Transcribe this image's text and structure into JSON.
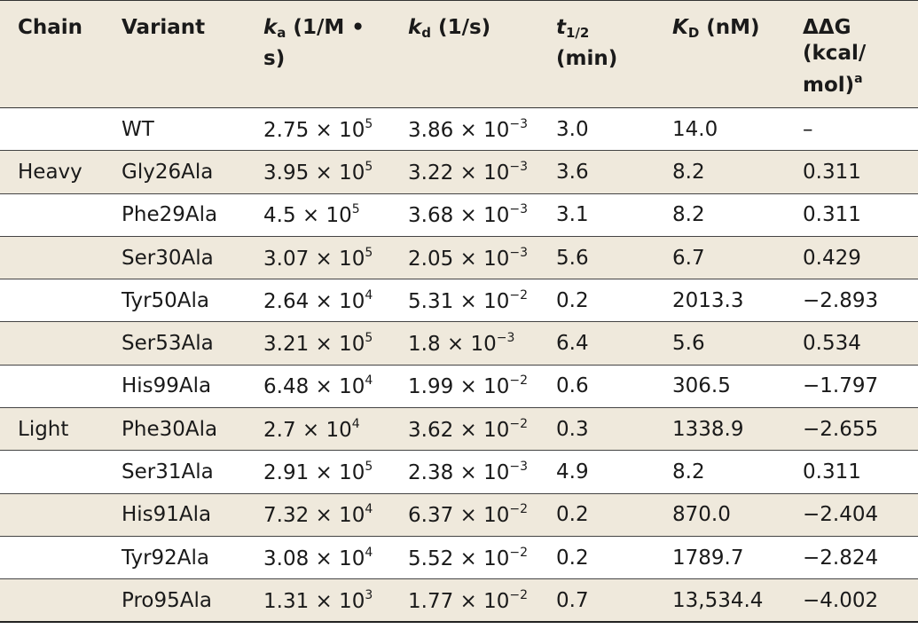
{
  "table": {
    "header": [
      "Chain",
      "Variant",
      {
        "italic": "k",
        "sub": "a",
        "text": " (1/M • s)"
      },
      {
        "italic": "k",
        "sub": "d",
        "text": " (1/s)"
      },
      {
        "italic": "t",
        "sub": "1/2",
        "text": " (min)"
      },
      {
        "italic": "K",
        "sub": "D",
        "text": " (nM)"
      },
      {
        "text": "ΔΔG (kcal/ mol)",
        "sup": "a"
      }
    ],
    "rows": [
      [
        null,
        "WT",
        {
          "text": "2.75 × 10",
          "sup": "5"
        },
        {
          "text": "3.86 × 10",
          "sup": "−3"
        },
        "3.0",
        "14.0",
        "–"
      ],
      [
        "Heavy",
        "Gly26Ala",
        {
          "text": "3.95 × 10",
          "sup": "5"
        },
        {
          "text": "3.22 × 10",
          "sup": "−3"
        },
        "3.6",
        "8.2",
        "0.311"
      ],
      [
        null,
        "Phe29Ala",
        {
          "text": "4.5 × 10",
          "sup": "5"
        },
        {
          "text": "3.68 × 10",
          "sup": "−3"
        },
        "3.1",
        "8.2",
        "0.311"
      ],
      [
        null,
        "Ser30Ala",
        {
          "text": "3.07 × 10",
          "sup": "5"
        },
        {
          "text": "2.05 × 10",
          "sup": "−3"
        },
        "5.6",
        "6.7",
        "0.429"
      ],
      [
        null,
        "Tyr50Ala",
        {
          "text": "2.64 × 10",
          "sup": "4"
        },
        {
          "text": "5.31 × 10",
          "sup": "−2"
        },
        "0.2",
        "2013.3",
        "−2.893"
      ],
      [
        null,
        "Ser53Ala",
        {
          "text": "3.21 × 10",
          "sup": "5"
        },
        {
          "text": "1.8 × 10",
          "sup": "−3"
        },
        "6.4",
        "5.6",
        "0.534"
      ],
      [
        null,
        "His99Ala",
        {
          "text": "6.48 × 10",
          "sup": "4"
        },
        {
          "text": "1.99 × 10",
          "sup": "−2"
        },
        "0.6",
        "306.5",
        "−1.797"
      ],
      [
        "Light",
        "Phe30Ala",
        {
          "text": "2.7 × 10",
          "sup": "4"
        },
        {
          "text": "3.62 × 10",
          "sup": "−2"
        },
        "0.3",
        "1338.9",
        "−2.655"
      ],
      [
        null,
        "Ser31Ala",
        {
          "text": "2.91 × 10",
          "sup": "5"
        },
        {
          "text": "2.38 × 10",
          "sup": "−3"
        },
        "4.9",
        "8.2",
        "0.311"
      ],
      [
        null,
        "His91Ala",
        {
          "text": "7.32 × 10",
          "sup": "4"
        },
        {
          "text": "6.37 × 10",
          "sup": "−2"
        },
        "0.2",
        "870.0",
        "−2.404"
      ],
      [
        null,
        "Tyr92Ala",
        {
          "text": "3.08 × 10",
          "sup": "4"
        },
        {
          "text": "5.52 × 10",
          "sup": "−2"
        },
        "0.2",
        "1789.7",
        "−2.824"
      ],
      [
        null,
        "Pro95Ala",
        {
          "text": "1.31 × 10",
          "sup": "3"
        },
        {
          "text": "1.77 × 10",
          "sup": "−2"
        },
        "0.7",
        "13,534.4",
        "−4.002"
      ]
    ]
  }
}
